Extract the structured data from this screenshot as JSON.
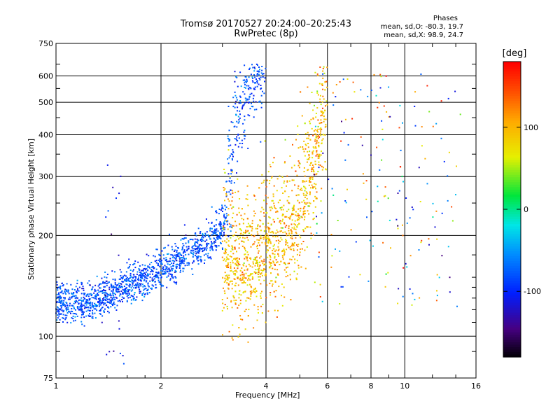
{
  "header": {
    "title_line1": "Tromsø 20170527 20:24:00–20:25:43",
    "title_line2": "RwPretec (8p)",
    "phases_label": "Phases",
    "stats_o": "mean, sd,O: -80.3, 19.7",
    "stats_x": "mean, sd,X: 98.9, 24.7"
  },
  "colorbar": {
    "unit": "[deg]",
    "ticks": [
      "100",
      "0",
      "-100"
    ],
    "range": [
      -180,
      180
    ]
  },
  "colors": {
    "background": "#ffffff",
    "grid": "#000000"
  },
  "chart_data": {
    "type": "scatter",
    "title": "Tromsø 20170527 20:24:00–20:25:43",
    "subtitle": "RwPretec (8p)",
    "xlabel": "Frequency [MHz]",
    "ylabel": "Stationary phase Virtual Height [km]",
    "xscale": "log",
    "yscale": "log",
    "xlim": [
      1,
      16
    ],
    "ylim": [
      75,
      750
    ],
    "xticks": [
      "1",
      "2",
      "4",
      "6",
      "8",
      "10",
      "16"
    ],
    "xtick_values": [
      1,
      2,
      4,
      6,
      8,
      10,
      16
    ],
    "yticks": [
      "750",
      "600",
      "500",
      "400",
      "300",
      "200",
      "100",
      "75"
    ],
    "ytick_values": [
      750,
      600,
      500,
      400,
      300,
      200,
      100,
      75
    ],
    "grid": true,
    "color_encoding": "phase in degrees",
    "series": [
      {
        "name": "O-mode",
        "phase_mean": -80.3,
        "phase_sd": 19.7,
        "trace": [
          [
            1.0,
            120
          ],
          [
            1.1,
            118
          ],
          [
            1.2,
            120
          ],
          [
            1.3,
            122
          ],
          [
            1.4,
            125
          ],
          [
            1.6,
            135
          ],
          [
            1.8,
            142
          ],
          [
            2.0,
            150
          ],
          [
            2.2,
            158
          ],
          [
            2.5,
            170
          ],
          [
            2.8,
            185
          ],
          [
            3.0,
            200
          ],
          [
            3.2,
            280
          ],
          [
            3.3,
            380
          ],
          [
            3.4,
            450
          ],
          [
            3.6,
            520
          ],
          [
            3.8,
            560
          ],
          [
            4.0,
            600
          ]
        ]
      },
      {
        "name": "X-mode",
        "phase_mean": 98.9,
        "phase_sd": 24.7,
        "trace": [
          [
            3.0,
            140
          ],
          [
            3.4,
            145
          ],
          [
            3.8,
            150
          ],
          [
            4.2,
            160
          ],
          [
            4.6,
            175
          ],
          [
            5.0,
            200
          ],
          [
            5.4,
            260
          ],
          [
            5.6,
            320
          ],
          [
            5.8,
            380
          ],
          [
            6.0,
            430
          ]
        ]
      }
    ]
  }
}
